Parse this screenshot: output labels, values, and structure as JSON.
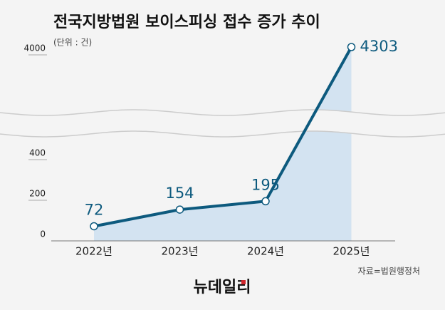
{
  "chart_data": {
    "type": "line",
    "title": "전국지방법원 보이스피싱 접수 증가 추이",
    "subtitle": "(단위 : 건)",
    "categories": [
      "2022년",
      "2023년",
      "2024년",
      "2025년"
    ],
    "values": [
      72,
      154,
      195,
      4303
    ],
    "color": "#0d5a7e",
    "area_color": "#d3e3f1",
    "ylim": [
      0,
      4303
    ],
    "yticks": [
      0,
      200,
      400,
      4000
    ],
    "axis_break": true,
    "source": "자료=법원행정처",
    "logo": "뉴데일리"
  }
}
